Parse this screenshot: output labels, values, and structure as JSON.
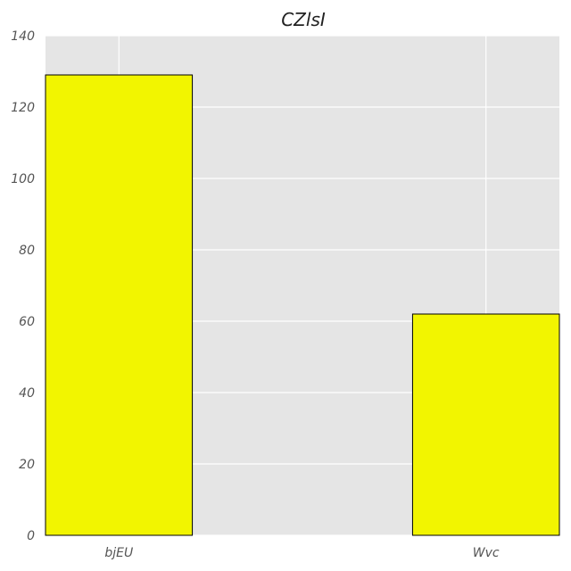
{
  "chart_data": {
    "type": "bar",
    "title": "CZlsI",
    "xlabel": "",
    "ylabel": "",
    "categories": [
      "bjEU",
      "Wvc"
    ],
    "values": [
      129,
      62
    ],
    "ylim": [
      0,
      140
    ],
    "yticks": [
      0,
      20,
      40,
      60,
      80,
      100,
      120,
      140
    ],
    "grid": true,
    "colors": {
      "bar_fill": "#f2f500",
      "bar_edge": "#000000",
      "plot_background": "#e5e5e5",
      "grid": "#ffffff"
    }
  }
}
